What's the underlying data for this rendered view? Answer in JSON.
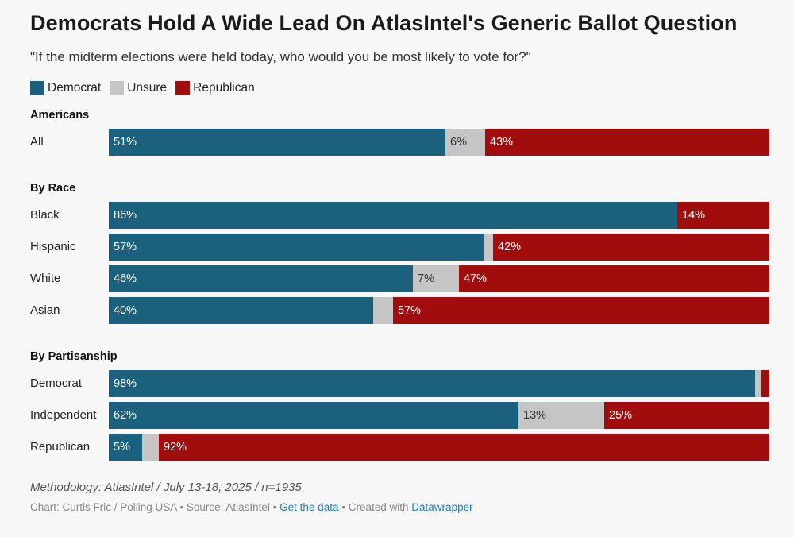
{
  "title": "Democrats Hold A Wide Lead On AtlasIntel's Generic Ballot Question",
  "subtitle": "\"If the midterm elections were held today, who would you be most likely to vote for?\"",
  "legend": [
    {
      "label": "Democrat",
      "color": "#1b607c"
    },
    {
      "label": "Unsure",
      "color": "#c5c5c5"
    },
    {
      "label": "Republican",
      "color": "#a10d0d"
    }
  ],
  "chart_data": {
    "type": "bar",
    "orientation": "horizontal",
    "stacked": true,
    "series": [
      {
        "name": "Democrat",
        "color": "#1b607c"
      },
      {
        "name": "Unsure",
        "color": "#c5c5c5"
      },
      {
        "name": "Republican",
        "color": "#a10d0d"
      }
    ],
    "groups": [
      {
        "label": "Americans",
        "rows": [
          {
            "label": "All",
            "values": [
              51,
              6,
              43
            ],
            "labels": [
              "51%",
              "6%",
              "43%"
            ]
          }
        ]
      },
      {
        "label": "By Race",
        "rows": [
          {
            "label": "Black",
            "values": [
              86,
              0,
              14
            ],
            "labels": [
              "86%",
              "",
              "14%"
            ]
          },
          {
            "label": "Hispanic",
            "values": [
              57,
              1.5,
              42
            ],
            "labels": [
              "57%",
              "",
              "42%"
            ]
          },
          {
            "label": "White",
            "values": [
              46,
              7,
              47
            ],
            "labels": [
              "46%",
              "7%",
              "47%"
            ]
          },
          {
            "label": "Asian",
            "values": [
              40,
              3,
              57
            ],
            "labels": [
              "40%",
              "",
              "57%"
            ]
          }
        ]
      },
      {
        "label": "By Partisanship",
        "rows": [
          {
            "label": "Democrat",
            "values": [
              98,
              1,
              1.2
            ],
            "labels": [
              "98%",
              "",
              ""
            ]
          },
          {
            "label": "Independent",
            "values": [
              62,
              13,
              25
            ],
            "labels": [
              "62%",
              "13%",
              "25%"
            ]
          },
          {
            "label": "Republican",
            "values": [
              5,
              2.5,
              92
            ],
            "labels": [
              "5%",
              "",
              "92%"
            ]
          }
        ]
      }
    ],
    "xlim": [
      0,
      100
    ]
  },
  "methodology": "Methodology: AtlasIntel / July 13-18, 2025 / n=1935",
  "footer": {
    "chart_by": "Chart: Curtis Fric / Polling USA",
    "source": "Source: AtlasIntel",
    "get_data": "Get the data",
    "created_with": "Created with",
    "tool": "Datawrapper",
    "separator": "•"
  }
}
